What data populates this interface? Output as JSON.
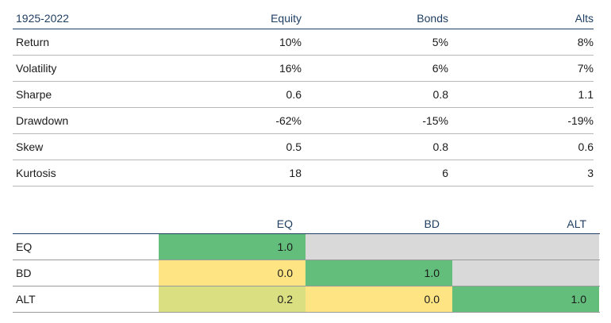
{
  "stats_table": {
    "header": [
      "1925-2022",
      "Equity",
      "Bonds",
      "Alts"
    ],
    "rows": [
      [
        "Return",
        "10%",
        "5%",
        "8%"
      ],
      [
        "Volatility",
        "16%",
        "6%",
        "7%"
      ],
      [
        "Sharpe",
        "0.6",
        "0.8",
        "1.1"
      ],
      [
        "Drawdown",
        "-62%",
        "-15%",
        "-19%"
      ],
      [
        "Skew",
        "0.5",
        "0.8",
        "0.6"
      ],
      [
        "Kurtosis",
        "18",
        "6",
        "3"
      ]
    ]
  },
  "correlation_matrix": {
    "columns": [
      "EQ",
      "BD",
      "ALT"
    ],
    "rows": [
      {
        "label": "EQ",
        "cells": [
          {
            "value": "1.0",
            "color": "#63be7b"
          },
          {
            "value": "",
            "color": "#d9d9d9"
          },
          {
            "value": "",
            "color": "#d9d9d9"
          }
        ]
      },
      {
        "label": "BD",
        "cells": [
          {
            "value": "0.0",
            "color": "#ffe484"
          },
          {
            "value": "1.0",
            "color": "#63be7b"
          },
          {
            "value": "",
            "color": "#d9d9d9"
          }
        ]
      },
      {
        "label": "ALT",
        "cells": [
          {
            "value": "0.2",
            "color": "#dae081"
          },
          {
            "value": "0.0",
            "color": "#ffe484"
          },
          {
            "value": "1.0",
            "color": "#63be7b"
          }
        ]
      }
    ]
  }
}
